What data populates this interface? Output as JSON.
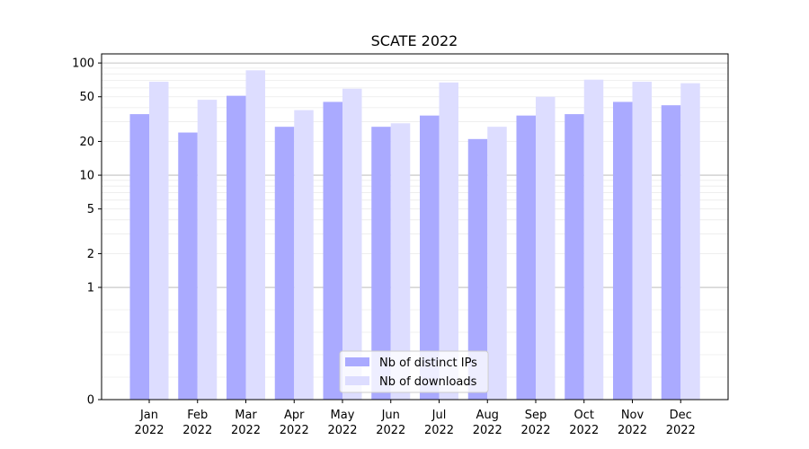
{
  "chart_data": {
    "type": "bar",
    "title": "SCATE 2022",
    "xlabel": "",
    "ylabel": "",
    "yscale": "symlog",
    "ylim": [
      0,
      100
    ],
    "yticks": [
      0,
      1,
      2,
      5,
      10,
      20,
      50,
      100
    ],
    "ytick_labels": [
      "0",
      "1",
      "2",
      "5",
      "10",
      "20",
      "50",
      "100"
    ],
    "grid": "horizontal",
    "legend_position": "bottom-center",
    "categories": [
      {
        "month": "Jan",
        "year": "2022"
      },
      {
        "month": "Feb",
        "year": "2022"
      },
      {
        "month": "Mar",
        "year": "2022"
      },
      {
        "month": "Apr",
        "year": "2022"
      },
      {
        "month": "May",
        "year": "2022"
      },
      {
        "month": "Jun",
        "year": "2022"
      },
      {
        "month": "Jul",
        "year": "2022"
      },
      {
        "month": "Aug",
        "year": "2022"
      },
      {
        "month": "Sep",
        "year": "2022"
      },
      {
        "month": "Oct",
        "year": "2022"
      },
      {
        "month": "Nov",
        "year": "2022"
      },
      {
        "month": "Dec",
        "year": "2022"
      }
    ],
    "series": [
      {
        "name": "Nb of distinct IPs",
        "color": "#aaaaff",
        "values": [
          35,
          24,
          51,
          27,
          45,
          27,
          34,
          21,
          34,
          35,
          45,
          42
        ]
      },
      {
        "name": "Nb of downloads",
        "color": "#ddddff",
        "values": [
          68,
          47,
          86,
          38,
          59,
          29,
          67,
          27,
          50,
          71,
          68,
          66
        ]
      }
    ]
  }
}
